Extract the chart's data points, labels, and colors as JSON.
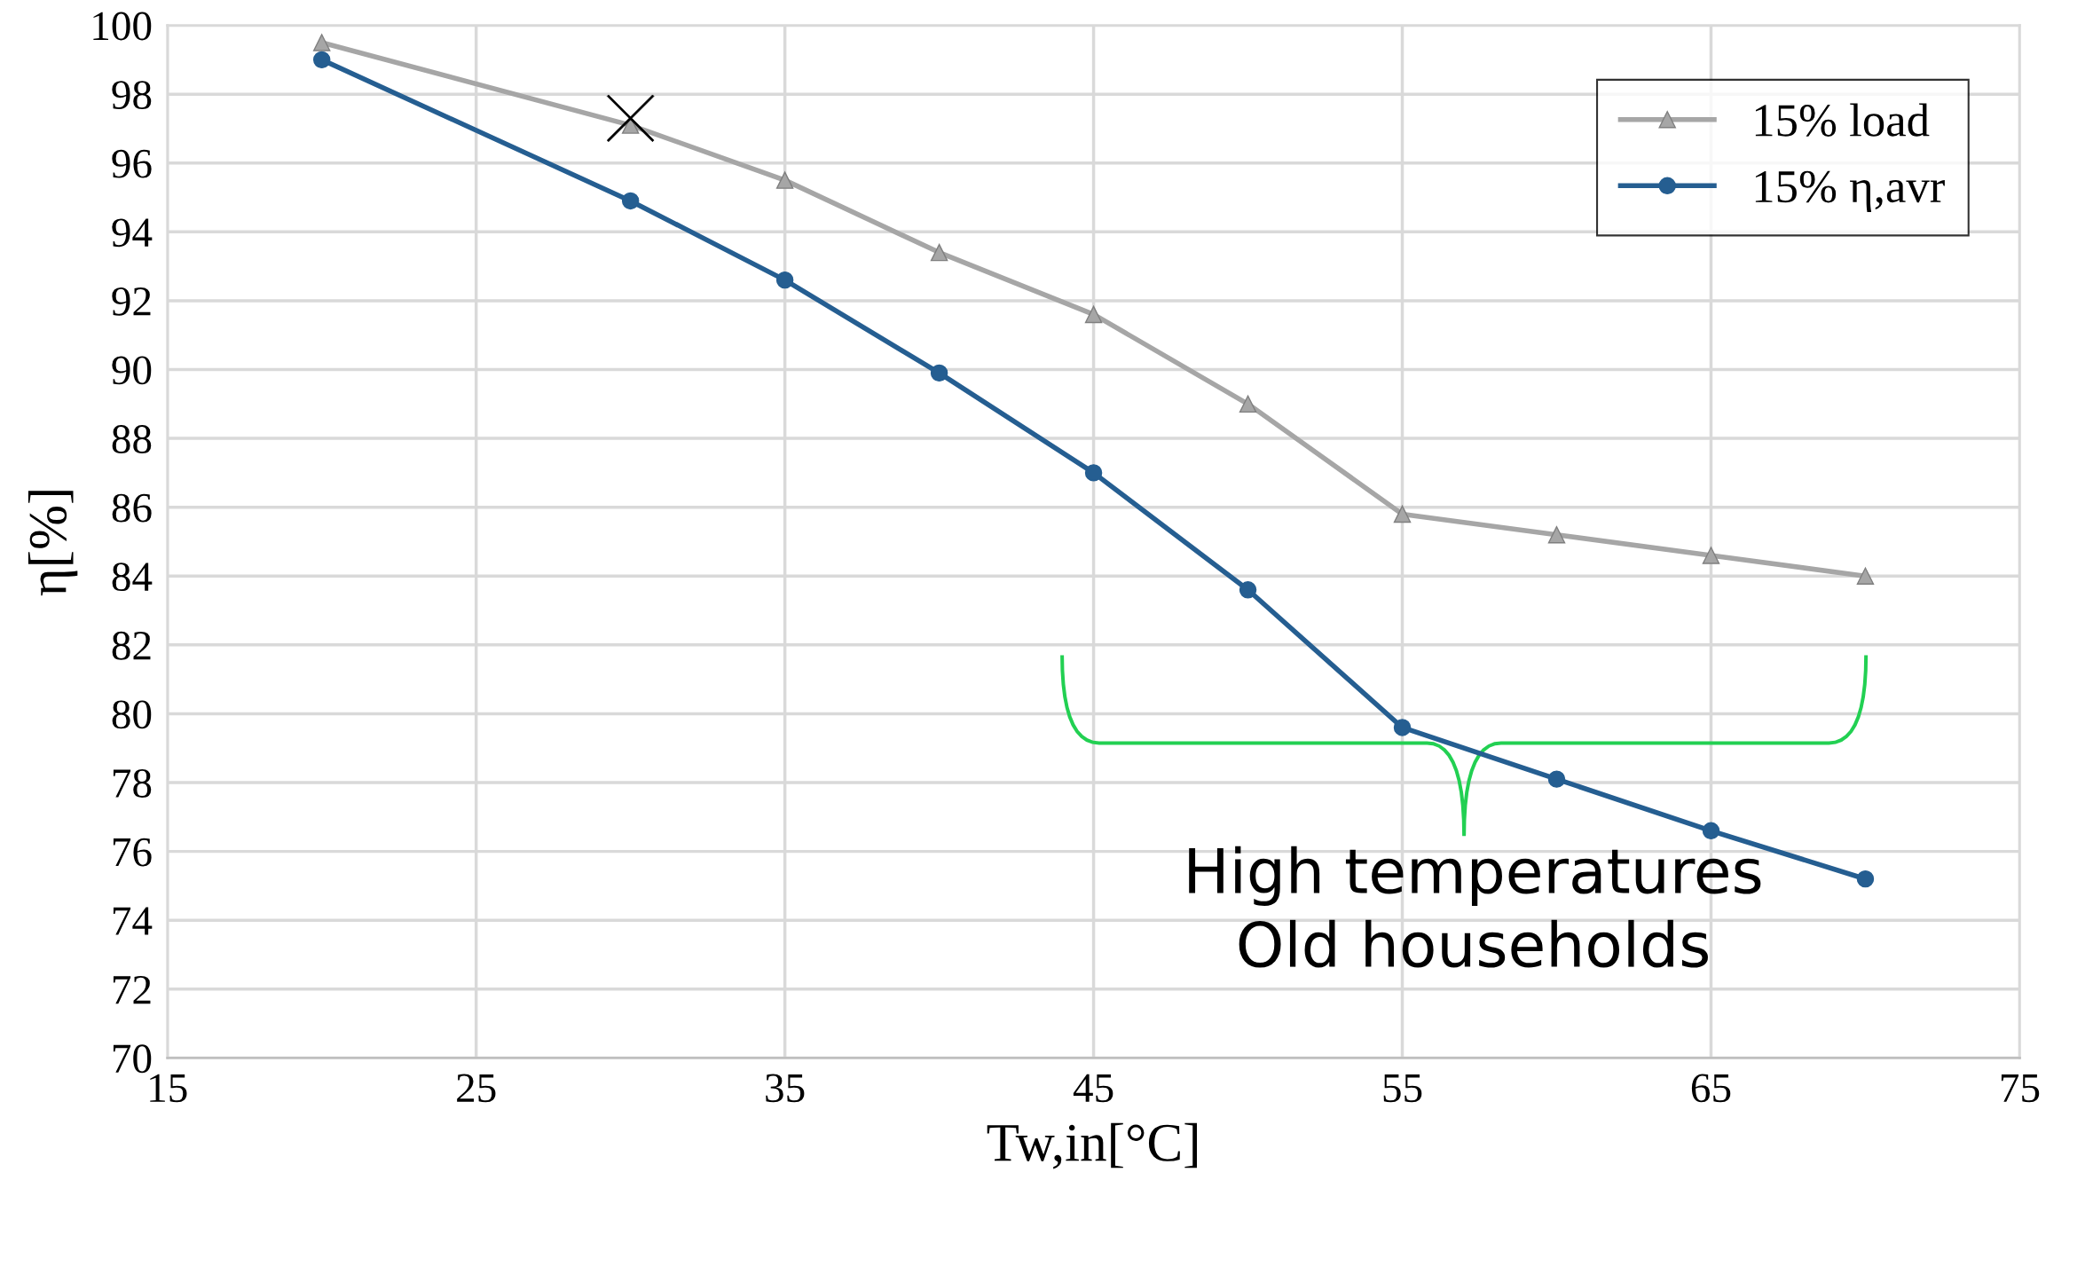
{
  "chart_data": {
    "type": "line",
    "xlabel": "Tw,in[°C]",
    "ylabel": "η[%]",
    "x": [
      20,
      30,
      35,
      40,
      45,
      50,
      55,
      60,
      65,
      70
    ],
    "series": [
      {
        "name": "15% load",
        "color": "#a6a6a6",
        "marker": "triangle",
        "values": [
          99.5,
          97.1,
          95.5,
          93.4,
          91.6,
          89.0,
          85.8,
          85.2,
          84.6,
          84.0
        ]
      },
      {
        "name": "15% η,avr",
        "color": "#255e91",
        "marker": "circle",
        "values": [
          99.0,
          94.9,
          92.6,
          89.9,
          87.0,
          83.6,
          79.6,
          78.1,
          76.6,
          75.2
        ]
      },
      {
        "type": "scatter",
        "color": "#000000",
        "marker": "cross",
        "x": [
          30
        ],
        "values": [
          97.3
        ]
      }
    ],
    "xlim": [
      15,
      75
    ],
    "xticks": [
      15,
      25,
      35,
      45,
      55,
      65,
      75
    ],
    "ylim": [
      70,
      100
    ],
    "yticks": [
      70,
      72,
      74,
      76,
      78,
      80,
      82,
      84,
      86,
      88,
      90,
      92,
      94,
      96,
      98,
      100
    ],
    "grid": true,
    "legend": "top right",
    "line_style": "solid",
    "annotations": [
      "High temperatures\nOld households"
    ]
  }
}
